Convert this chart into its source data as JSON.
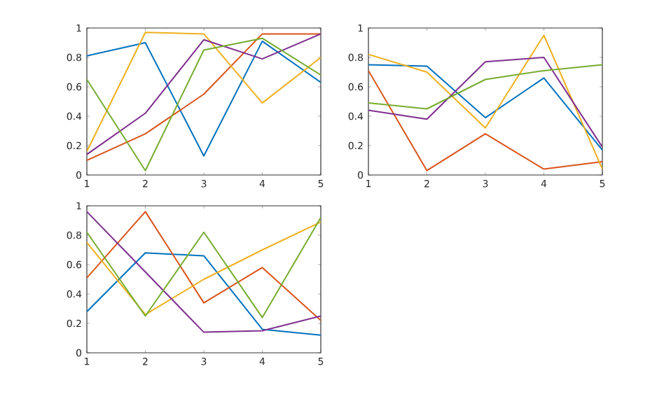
{
  "chart_data": [
    {
      "type": "line",
      "x": [
        1,
        2,
        3,
        4,
        5
      ],
      "xlim": [
        1,
        5
      ],
      "ylim": [
        0,
        1
      ],
      "xticks": [
        1,
        2,
        3,
        4,
        5
      ],
      "yticks": [
        0,
        0.2,
        0.4,
        0.6,
        0.8,
        1
      ],
      "series": [
        {
          "color": "#0072bd",
          "values": [
            0.81,
            0.9,
            0.13,
            0.91,
            0.63
          ]
        },
        {
          "color": "#d95319",
          "values": [
            0.1,
            0.28,
            0.55,
            0.96,
            0.96
          ]
        },
        {
          "color": "#edb120",
          "values": [
            0.16,
            0.97,
            0.96,
            0.49,
            0.8
          ]
        },
        {
          "color": "#7e2f8e",
          "values": [
            0.14,
            0.42,
            0.92,
            0.79,
            0.96
          ]
        },
        {
          "color": "#77ac30",
          "values": [
            0.65,
            0.03,
            0.85,
            0.93,
            0.68
          ]
        }
      ]
    },
    {
      "type": "line",
      "x": [
        1,
        2,
        3,
        4,
        5
      ],
      "xlim": [
        1,
        5
      ],
      "ylim": [
        0,
        1
      ],
      "xticks": [
        1,
        2,
        3,
        4,
        5
      ],
      "yticks": [
        0,
        0.2,
        0.4,
        0.6,
        0.8,
        1
      ],
      "series": [
        {
          "color": "#0072bd",
          "values": [
            0.75,
            0.74,
            0.39,
            0.66,
            0.17
          ]
        },
        {
          "color": "#d95319",
          "values": [
            0.71,
            0.03,
            0.28,
            0.04,
            0.09
          ]
        },
        {
          "color": "#edb120",
          "values": [
            0.82,
            0.7,
            0.32,
            0.95,
            0.04
          ]
        },
        {
          "color": "#7e2f8e",
          "values": [
            0.44,
            0.38,
            0.77,
            0.8,
            0.19
          ]
        },
        {
          "color": "#77ac30",
          "values": [
            0.49,
            0.45,
            0.65,
            0.71,
            0.75
          ]
        }
      ]
    },
    {
      "type": "line",
      "x": [
        1,
        2,
        3,
        4,
        5
      ],
      "xlim": [
        1,
        5
      ],
      "ylim": [
        0,
        1
      ],
      "xticks": [
        1,
        2,
        3,
        4,
        5
      ],
      "yticks": [
        0,
        0.2,
        0.4,
        0.6,
        0.8,
        1
      ],
      "series": [
        {
          "color": "#0072bd",
          "values": [
            0.28,
            0.68,
            0.66,
            0.16,
            0.12
          ]
        },
        {
          "color": "#d95319",
          "values": [
            0.51,
            0.96,
            0.34,
            0.58,
            0.22
          ]
        },
        {
          "color": "#edb120",
          "values": [
            0.75,
            0.26,
            0.5,
            0.7,
            0.89
          ]
        },
        {
          "color": "#7e2f8e",
          "values": [
            0.96,
            0.55,
            0.14,
            0.15,
            0.25
          ]
        },
        {
          "color": "#77ac30",
          "values": [
            0.82,
            0.25,
            0.82,
            0.24,
            0.92
          ]
        }
      ]
    }
  ]
}
